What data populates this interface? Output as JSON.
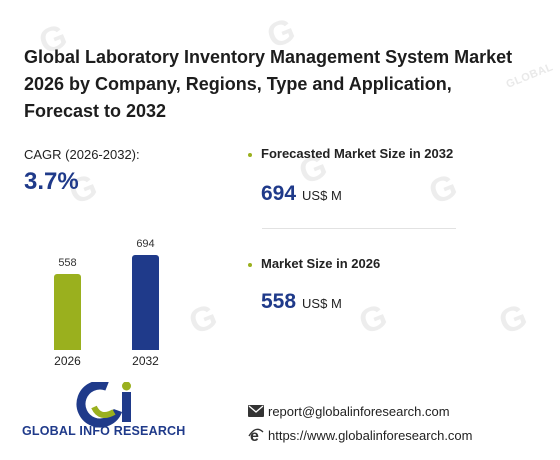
{
  "title": "Global Laboratory Inventory Management System Market 2026 by Company, Regions, Type and Application, Forecast to 2032",
  "cagr": {
    "label": "CAGR (2026-2032):",
    "value": "3.7%"
  },
  "chart_data": {
    "type": "bar",
    "categories": [
      "2026",
      "2032"
    ],
    "values": [
      558,
      694
    ],
    "colors": [
      "#9ab01e",
      "#1f3a8a"
    ]
  },
  "stats": [
    {
      "label": "Forecasted Market Size in 2032",
      "value": "694",
      "unit": "US$ M"
    },
    {
      "label": "Market Size in 2026",
      "value": "558",
      "unit": "US$ M"
    }
  ],
  "brand": {
    "name": "GLOBAL INFO RESEARCH",
    "watermark_text": "GLOBAL INFO RESEARCH"
  },
  "contact": {
    "email": "report@globalinforesearch.com",
    "website": "https://www.globalinforesearch.com",
    "email_icon": "envelope-icon",
    "web_icon": "internet-explorer-icon"
  },
  "colors": {
    "accent_green": "#9ab01e",
    "accent_blue": "#1f3a8a"
  }
}
